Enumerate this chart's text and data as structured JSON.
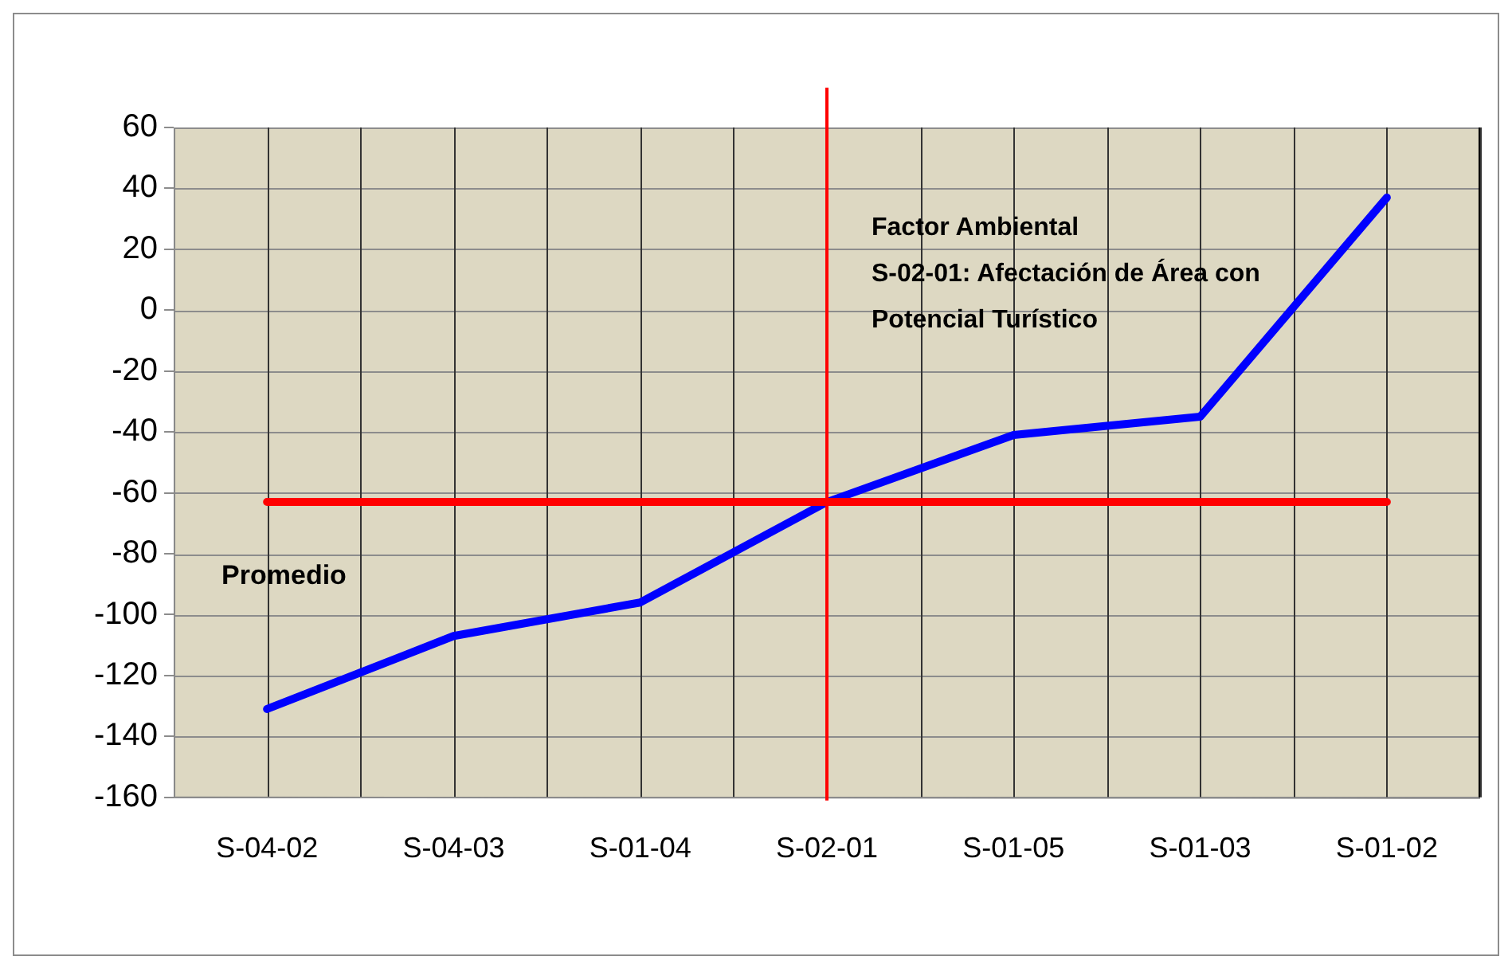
{
  "chart_data": {
    "type": "line",
    "categories": [
      "S-04-02",
      "S-04-03",
      "S-01-04",
      "S-02-01",
      "S-01-05",
      "S-01-03",
      "S-01-02"
    ],
    "series": [
      {
        "color": "#0000ff",
        "values": [
          -131,
          -107,
          -96,
          -63,
          -41,
          -35,
          37
        ]
      }
    ],
    "ylim": [
      -160,
      60
    ],
    "yticks": [
      -160,
      -140,
      -120,
      -100,
      -80,
      -60,
      -40,
      -20,
      0,
      20,
      40,
      60
    ],
    "grid": true,
    "marker": "none",
    "line_style": "solid",
    "ref_lines": [
      {
        "axis": "y",
        "value": -63,
        "label": "Promedio",
        "color": "#ff0000"
      },
      {
        "axis": "x",
        "value": "S-02-01",
        "label": null,
        "color": "#ff0000"
      }
    ],
    "annotations": [
      "Factor Ambiental\nS-02-01: Afectación de Área con\nPotencial Turístico"
    ]
  }
}
